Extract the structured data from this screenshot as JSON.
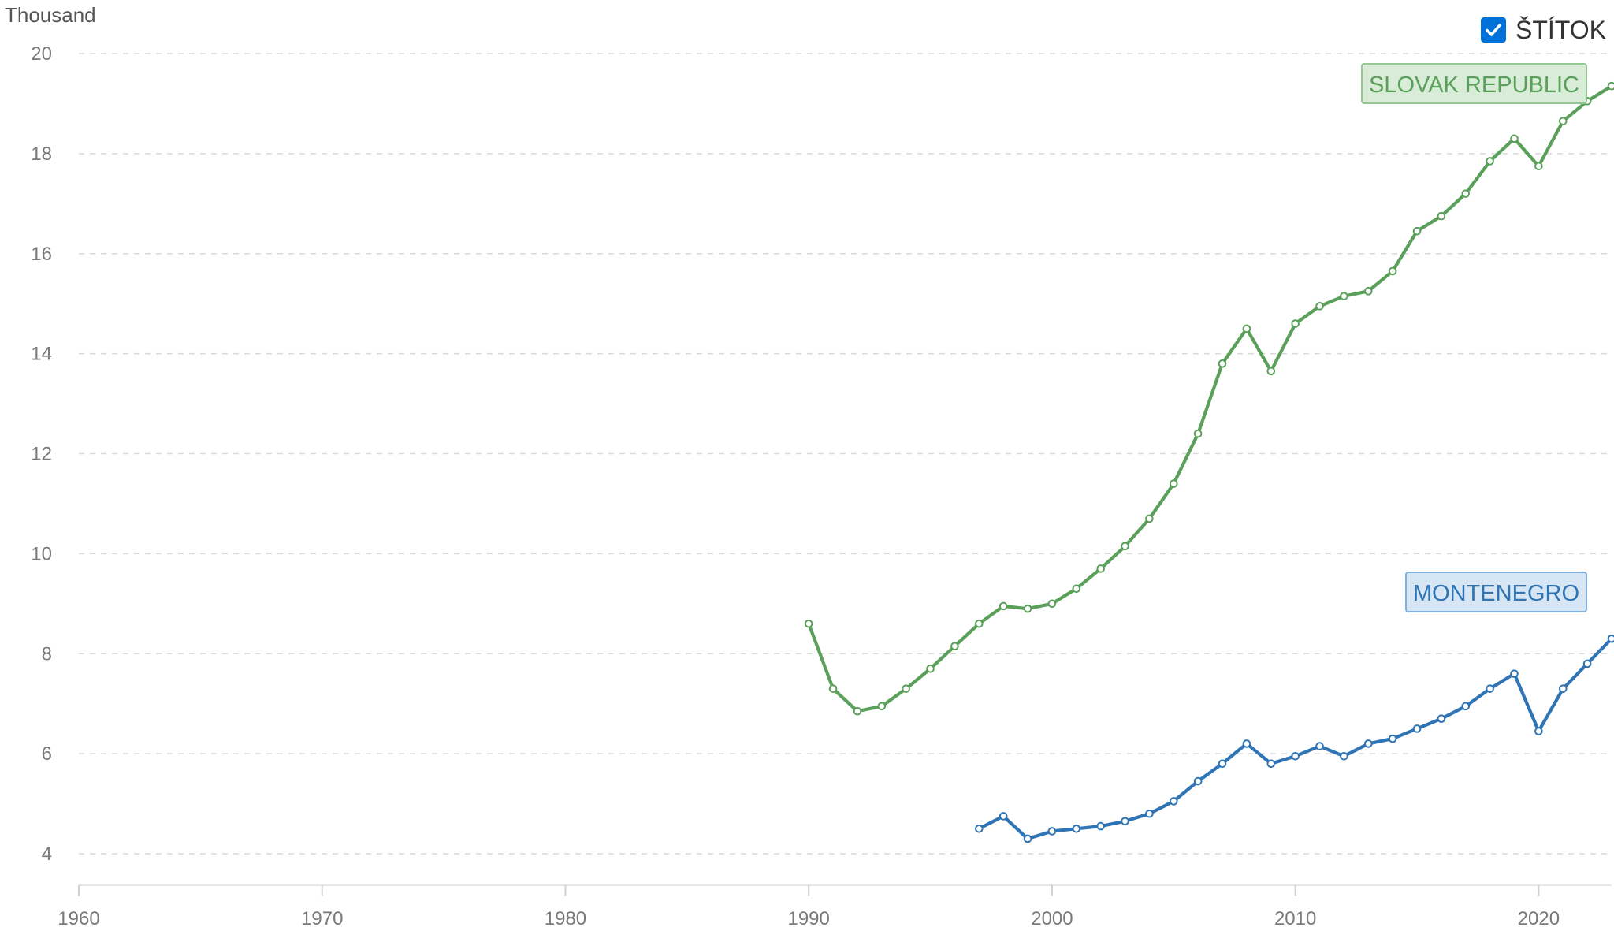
{
  "legend": {
    "label": "ŠTÍTOK",
    "checked": true,
    "accent": "#0071d8"
  },
  "chart_data": {
    "type": "line",
    "title": "",
    "xlabel": "",
    "ylabel": "Thousand",
    "xlim": [
      1960,
      2023
    ],
    "ylim": [
      4,
      20
    ],
    "x_ticks": [
      "1960",
      "1970",
      "1980",
      "1990",
      "2000",
      "2010",
      "2020"
    ],
    "y_ticks": [
      "4",
      "6",
      "8",
      "10",
      "12",
      "14",
      "16",
      "18",
      "20"
    ],
    "grid": true,
    "series": [
      {
        "name": "SLOVAK REPUBLIC",
        "color": "#5aa05a",
        "label_bg": "#d8ecd8",
        "label_border": "#93c893",
        "x": [
          1990,
          1991,
          1992,
          1993,
          1994,
          1995,
          1996,
          1997,
          1998,
          1999,
          2000,
          2001,
          2002,
          2003,
          2004,
          2005,
          2006,
          2007,
          2008,
          2009,
          2010,
          2011,
          2012,
          2013,
          2014,
          2015,
          2016,
          2017,
          2018,
          2019,
          2020,
          2021,
          2022,
          2023
        ],
        "y": [
          8.6,
          7.3,
          6.85,
          6.95,
          7.3,
          7.7,
          8.15,
          8.6,
          8.95,
          8.9,
          9.0,
          9.3,
          9.7,
          10.15,
          10.7,
          11.4,
          12.4,
          13.8,
          14.5,
          13.65,
          14.6,
          14.95,
          15.15,
          15.25,
          15.65,
          16.45,
          16.75,
          17.2,
          17.85,
          18.3,
          17.75,
          18.65,
          19.05,
          19.35
        ]
      },
      {
        "name": "MONTENEGRO",
        "color": "#2f74b5",
        "label_bg": "#d6e6f5",
        "label_border": "#7fb0de",
        "x": [
          1997,
          1998,
          1999,
          2000,
          2001,
          2002,
          2003,
          2004,
          2005,
          2006,
          2007,
          2008,
          2009,
          2010,
          2011,
          2012,
          2013,
          2014,
          2015,
          2016,
          2017,
          2018,
          2019,
          2020,
          2021,
          2022,
          2023
        ],
        "y": [
          4.5,
          4.75,
          4.3,
          4.45,
          4.5,
          4.55,
          4.65,
          4.8,
          5.05,
          5.45,
          5.8,
          6.2,
          5.8,
          5.95,
          6.15,
          5.95,
          6.2,
          6.3,
          6.5,
          6.7,
          6.95,
          7.3,
          7.6,
          6.45,
          7.3,
          7.8,
          8.3
        ]
      }
    ]
  }
}
